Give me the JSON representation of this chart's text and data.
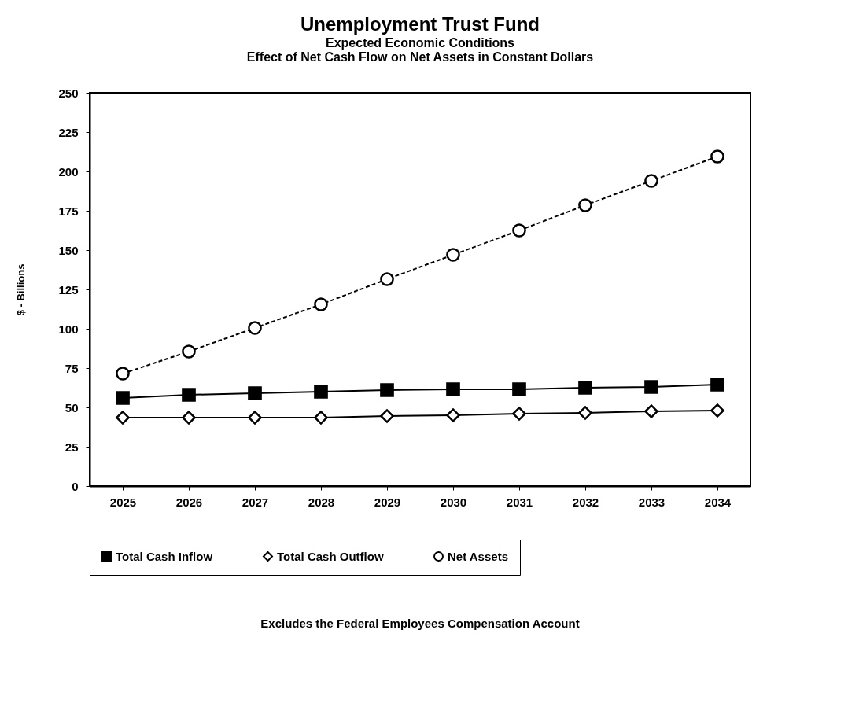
{
  "chart_data": {
    "type": "line",
    "title": "Unemployment Trust Fund",
    "subtitle": [
      "Expected Economic Conditions",
      "Effect of Net Cash Flow on Net Assets in Constant Dollars"
    ],
    "ylabel": "$ - Billions",
    "categories": [
      "2025",
      "2026",
      "2027",
      "2028",
      "2029",
      "2030",
      "2031",
      "2032",
      "2033",
      "2034"
    ],
    "series": [
      {
        "name": "Total Cash Inflow",
        "color": "#000000",
        "marker": "square",
        "line_style": "solid",
        "values": [
          56,
          58,
          59,
          60,
          61,
          61.5,
          61.5,
          62.5,
          63,
          64.5
        ]
      },
      {
        "name": "Total Cash Outflow",
        "color": "#000000",
        "marker": "diamond",
        "line_style": "solid",
        "values": [
          43.5,
          43.5,
          43.5,
          43.5,
          44.5,
          45,
          46,
          46.5,
          47.5,
          48
        ]
      },
      {
        "name": "Net Assets",
        "color": "#000000",
        "marker": "circle",
        "line_style": "dashed",
        "values": [
          71.5,
          85.5,
          100.5,
          115.5,
          131.5,
          147,
          162.5,
          178.5,
          194,
          209.5
        ]
      }
    ],
    "ylim": [
      0,
      250
    ],
    "yticks": [
      0,
      25,
      50,
      75,
      100,
      125,
      150,
      175,
      200,
      225,
      250
    ],
    "grid": false,
    "legend": "bottom",
    "annotations": [
      "Excludes the Federal Employees Compensation Account"
    ]
  }
}
